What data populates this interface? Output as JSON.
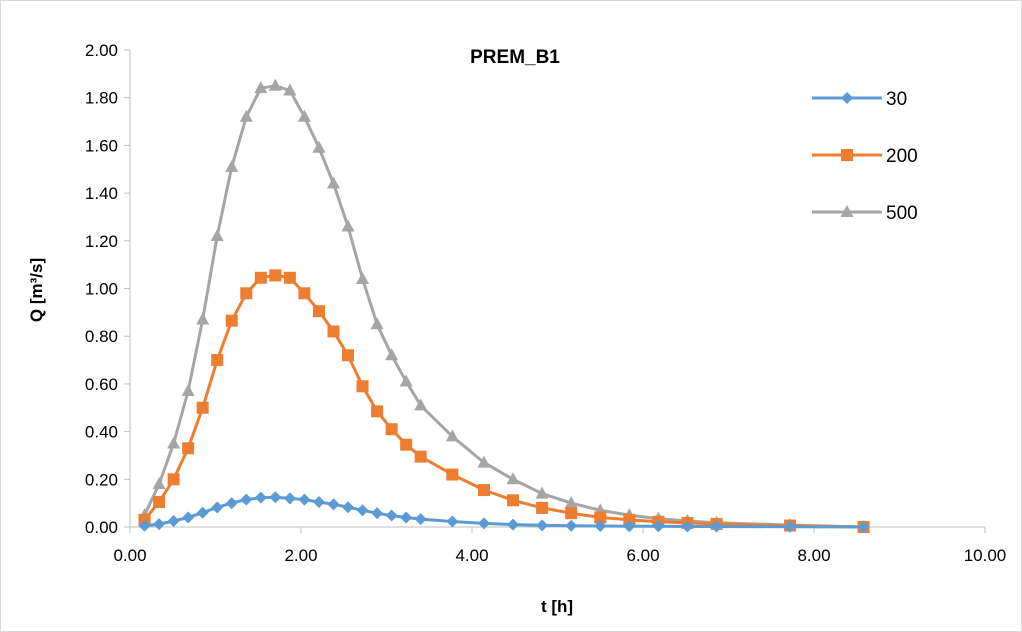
{
  "chart_data": {
    "type": "line",
    "title": "PREM_B1",
    "xlabel": "t [h]",
    "ylabel": "Q [m³/s]",
    "xlim": [
      0,
      10
    ],
    "ylim": [
      0,
      2
    ],
    "xticks": [
      "0.00",
      "2.00",
      "4.00",
      "6.00",
      "8.00",
      "10.00"
    ],
    "yticks": [
      "0.00",
      "0.20",
      "0.40",
      "0.60",
      "0.80",
      "1.00",
      "1.20",
      "1.40",
      "1.60",
      "1.80",
      "2.00"
    ],
    "legend_position": "right",
    "grid": false,
    "x": [
      0.17,
      0.34,
      0.51,
      0.68,
      0.85,
      1.02,
      1.19,
      1.36,
      1.53,
      1.7,
      1.87,
      2.04,
      2.21,
      2.38,
      2.55,
      2.72,
      2.89,
      3.06,
      3.23,
      3.4,
      3.77,
      4.14,
      4.48,
      4.82,
      5.16,
      5.5,
      5.84,
      6.18,
      6.52,
      6.86,
      7.72,
      8.58
    ],
    "series": [
      {
        "name": "30",
        "color": "#5b9bd5",
        "marker": "diamond",
        "values": [
          0.005,
          0.012,
          0.025,
          0.04,
          0.06,
          0.082,
          0.1,
          0.115,
          0.123,
          0.125,
          0.12,
          0.115,
          0.105,
          0.095,
          0.083,
          0.07,
          0.058,
          0.048,
          0.04,
          0.033,
          0.023,
          0.015,
          0.01,
          0.007,
          0.005,
          0.004,
          0.003,
          0.003,
          0.002,
          0.002,
          0.001,
          0.0
        ]
      },
      {
        "name": "200",
        "color": "#ed7d31",
        "marker": "square",
        "values": [
          0.03,
          0.105,
          0.2,
          0.33,
          0.5,
          0.7,
          0.865,
          0.98,
          1.045,
          1.055,
          1.045,
          0.98,
          0.905,
          0.82,
          0.72,
          0.59,
          0.485,
          0.41,
          0.345,
          0.295,
          0.22,
          0.155,
          0.112,
          0.08,
          0.058,
          0.04,
          0.03,
          0.022,
          0.017,
          0.013,
          0.006,
          0.0
        ]
      },
      {
        "name": "500",
        "color": "#a5a5a5",
        "marker": "triangle",
        "values": [
          0.05,
          0.18,
          0.35,
          0.57,
          0.87,
          1.22,
          1.51,
          1.72,
          1.84,
          1.85,
          1.83,
          1.72,
          1.59,
          1.44,
          1.26,
          1.04,
          0.85,
          0.72,
          0.61,
          0.51,
          0.38,
          0.27,
          0.2,
          0.14,
          0.1,
          0.07,
          0.05,
          0.035,
          0.025,
          0.018,
          0.008,
          0.0
        ]
      }
    ]
  }
}
